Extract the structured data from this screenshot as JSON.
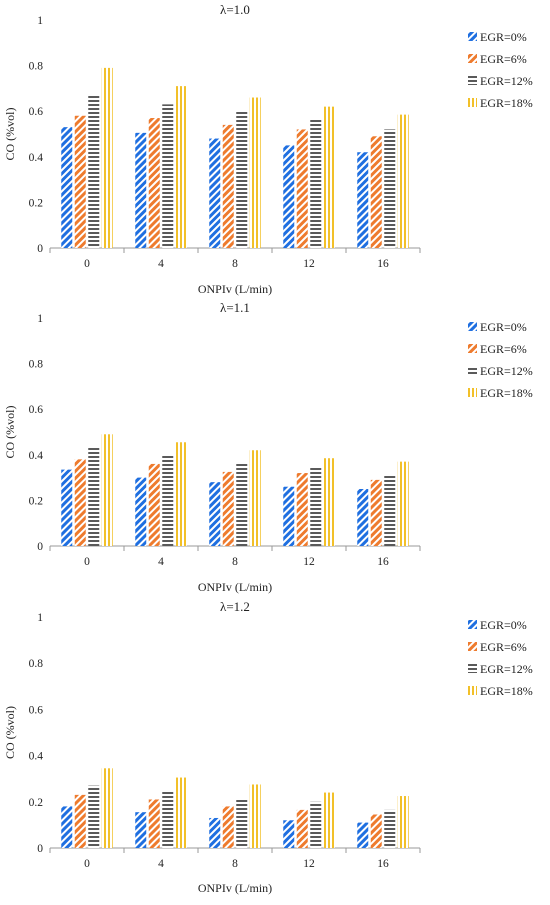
{
  "figure": {
    "charts": [
      {
        "title": "λ=1.0",
        "type": "bar",
        "xlabel": "ONPIv (L/min)",
        "ylabel": "CO (%vol)",
        "categories": [
          "0",
          "4",
          "8",
          "12",
          "16"
        ],
        "ylim": [
          0,
          1
        ],
        "yticks": [
          "0",
          "0.2",
          "0.4",
          "0.6",
          "0.8",
          "1"
        ],
        "legend_position": "right",
        "series": [
          {
            "name": "EGR=0%",
            "values": [
              0.53,
              0.505,
              0.48,
              0.45,
              0.42
            ]
          },
          {
            "name": "EGR=6%",
            "values": [
              0.58,
              0.57,
              0.54,
              0.52,
              0.49
            ]
          },
          {
            "name": "EGR=12%",
            "values": [
              0.67,
              0.63,
              0.6,
              0.57,
              0.52
            ]
          },
          {
            "name": "EGR=18%",
            "values": [
              0.79,
              0.71,
              0.66,
              0.62,
              0.585
            ]
          }
        ]
      },
      {
        "title": "λ=1.1",
        "type": "bar",
        "xlabel": "ONPIv (L/min)",
        "ylabel": "CO (%vol)",
        "categories": [
          "0",
          "4",
          "8",
          "12",
          "16"
        ],
        "ylim": [
          0,
          1
        ],
        "yticks": [
          "0",
          "0.2",
          "0.4",
          "0.6",
          "0.8",
          "1"
        ],
        "legend_position": "right",
        "series": [
          {
            "name": "EGR=0%",
            "values": [
              0.335,
              0.3,
              0.28,
              0.26,
              0.25
            ]
          },
          {
            "name": "EGR=6%",
            "values": [
              0.38,
              0.36,
              0.325,
              0.32,
              0.29
            ]
          },
          {
            "name": "EGR=12%",
            "values": [
              0.43,
              0.4,
              0.36,
              0.345,
              0.315
            ]
          },
          {
            "name": "EGR=18%",
            "values": [
              0.49,
              0.455,
              0.42,
              0.385,
              0.37
            ]
          }
        ]
      },
      {
        "title": "λ=1.2",
        "type": "bar",
        "xlabel": "ONPIv (L/min)",
        "ylabel": "CO (%vol)",
        "categories": [
          "0",
          "4",
          "8",
          "12",
          "16"
        ],
        "ylim": [
          0,
          1
        ],
        "yticks": [
          "0",
          "0.2",
          "0.4",
          "0.6",
          "0.8",
          "1"
        ],
        "legend_position": "right",
        "series": [
          {
            "name": "EGR=0%",
            "values": [
              0.18,
              0.155,
              0.13,
              0.12,
              0.11
            ]
          },
          {
            "name": "EGR=6%",
            "values": [
              0.23,
              0.21,
              0.18,
              0.165,
              0.145
            ]
          },
          {
            "name": "EGR=12%",
            "values": [
              0.27,
              0.245,
              0.215,
              0.2,
              0.165
            ]
          },
          {
            "name": "EGR=18%",
            "values": [
              0.345,
              0.305,
              0.275,
              0.24,
              0.225
            ]
          }
        ]
      }
    ]
  },
  "series_styles": [
    {
      "color": "#1f6fe0",
      "pattern": "diagonal"
    },
    {
      "color": "#ee7b2e",
      "pattern": "diagonal"
    },
    {
      "color": "#5a5a5a",
      "pattern": "horizontal"
    },
    {
      "color": "#f2c029",
      "pattern": "vertical"
    }
  ]
}
